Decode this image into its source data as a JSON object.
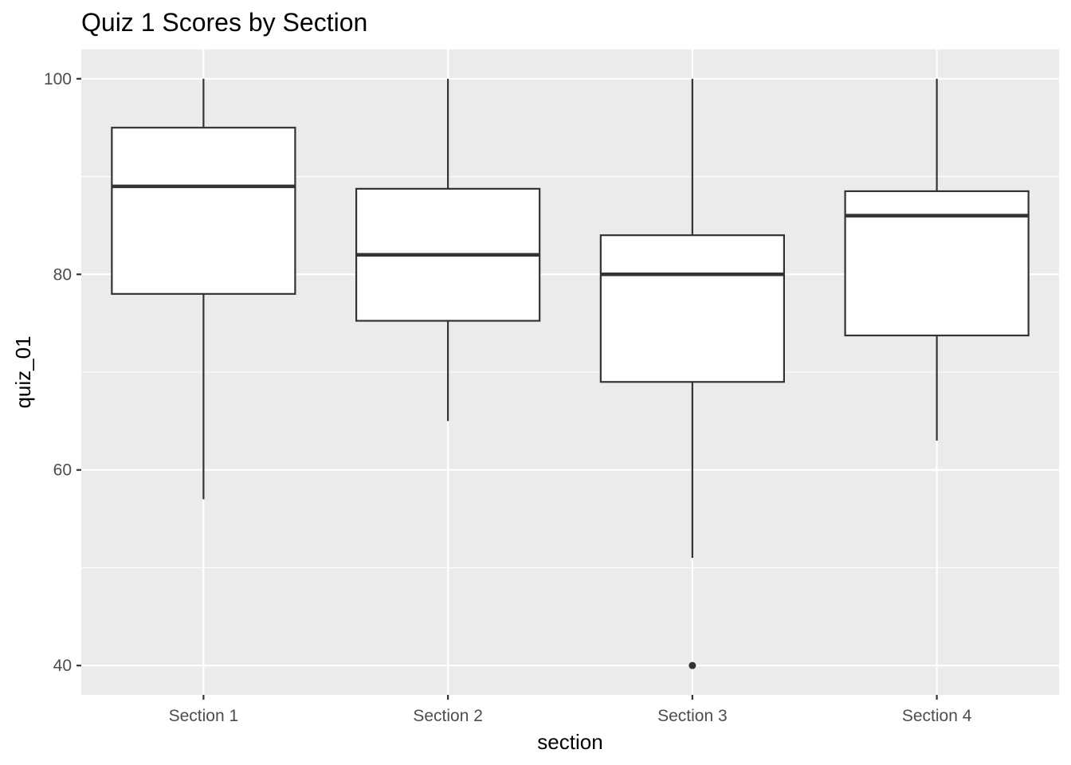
{
  "chart_data": {
    "type": "box",
    "title": "Quiz 1 Scores by Section",
    "xlabel": "section",
    "ylabel": "quiz_01",
    "categories": [
      "Section 1",
      "Section 2",
      "Section 3",
      "Section 4"
    ],
    "ylim": [
      37,
      103
    ],
    "yticks": [
      40,
      60,
      80,
      100
    ],
    "grid": true,
    "boxes": [
      {
        "category": "Section 1",
        "whisker_low": 57,
        "q1": 78,
        "median": 89,
        "q3": 95,
        "whisker_high": 100,
        "outliers": []
      },
      {
        "category": "Section 2",
        "whisker_low": 65,
        "q1": 75.25,
        "median": 82,
        "q3": 88.75,
        "whisker_high": 100,
        "outliers": []
      },
      {
        "category": "Section 3",
        "whisker_low": 51,
        "q1": 69,
        "median": 80,
        "q3": 84,
        "whisker_high": 100,
        "outliers": [
          40
        ]
      },
      {
        "category": "Section 4",
        "whisker_low": 63,
        "q1": 73.75,
        "median": 86,
        "q3": 88.5,
        "whisker_high": 100,
        "outliers": []
      }
    ],
    "colors": {
      "panel": "#ebebeb",
      "grid": "#ffffff",
      "box_fill": "#ffffff",
      "box_line": "#333333",
      "tick_text": "#4d4d4d"
    }
  }
}
